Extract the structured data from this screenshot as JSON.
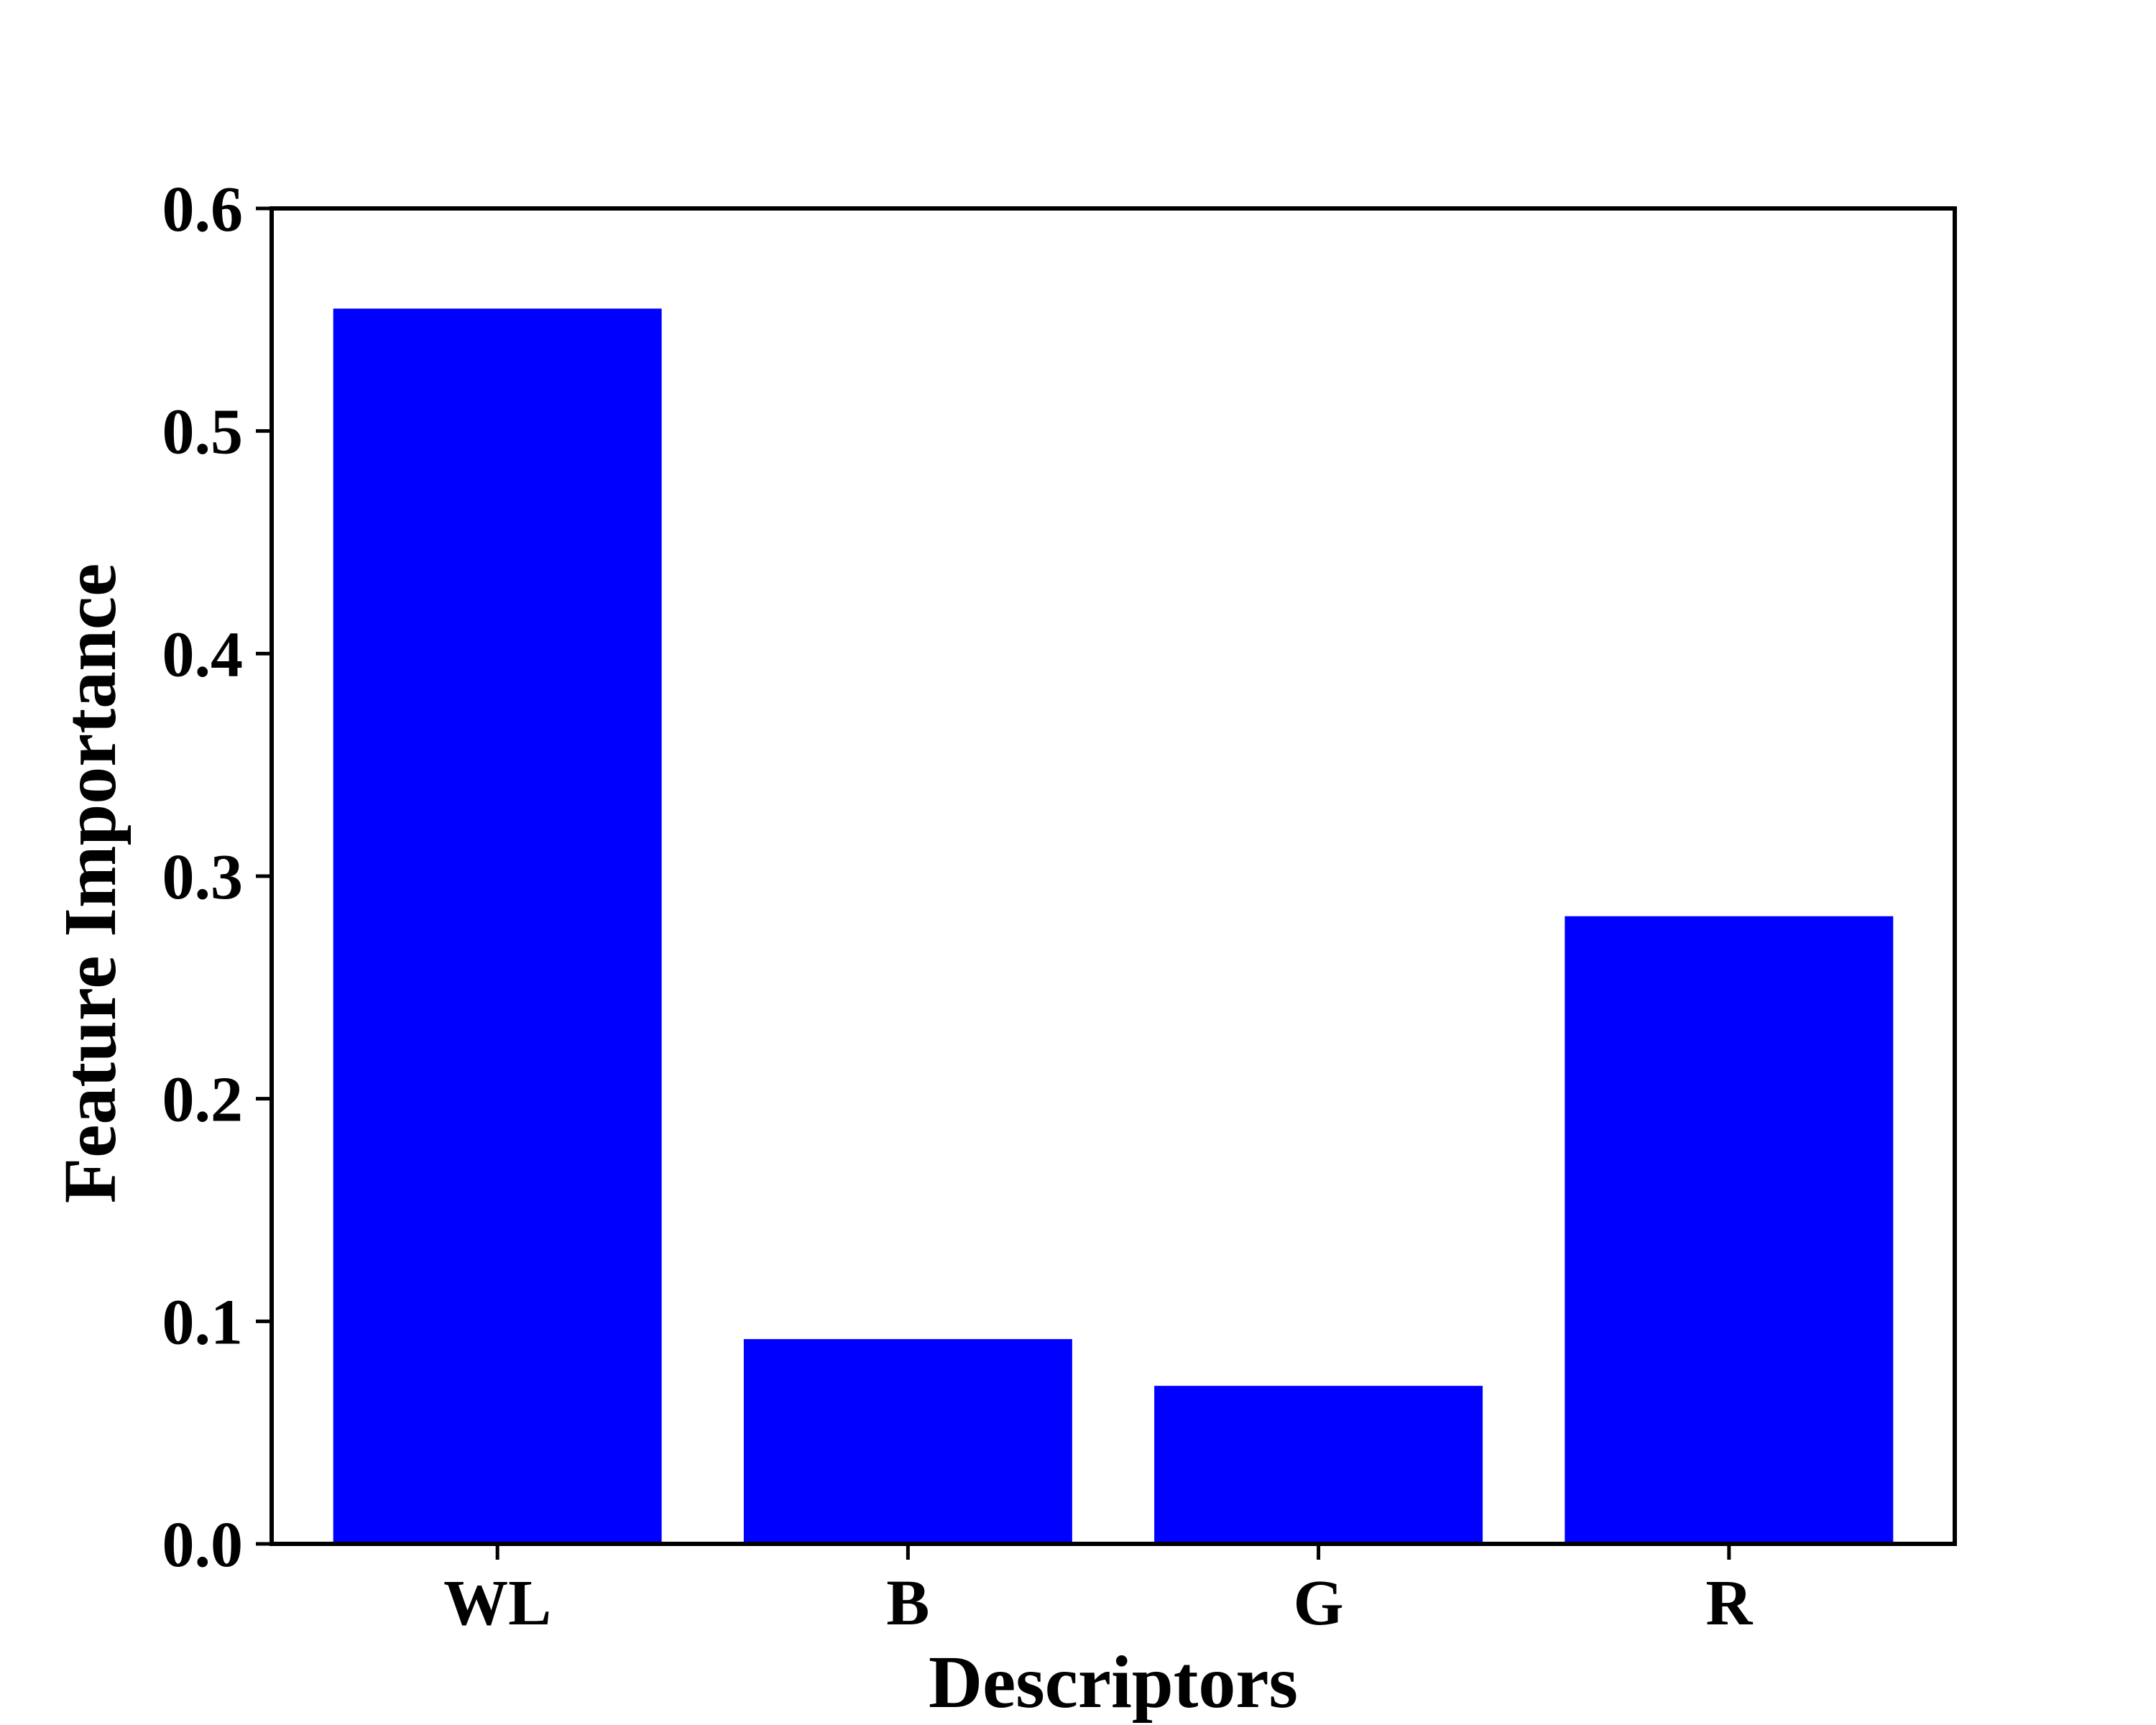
{
  "chart_data": {
    "type": "bar",
    "categories": [
      "WL",
      "B",
      "G",
      "R"
    ],
    "values": [
      0.555,
      0.092,
      0.071,
      0.282
    ],
    "title": "",
    "xlabel": "Descriptors",
    "ylabel": "Feature Importance",
    "ylim": [
      0,
      0.6
    ],
    "yticks": [
      "0.0",
      "0.1",
      "0.2",
      "0.3",
      "0.4",
      "0.5",
      "0.6"
    ],
    "grid": false,
    "bar_color": "#0000ff"
  }
}
